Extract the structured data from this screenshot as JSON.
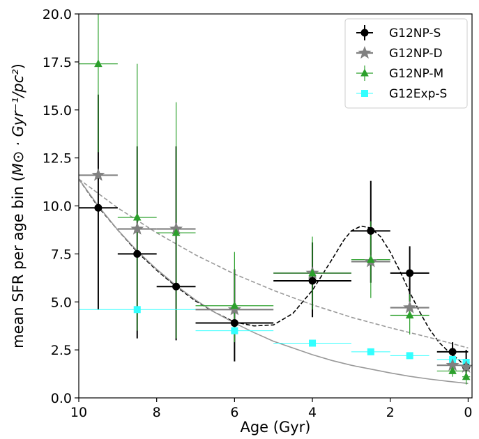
{
  "chart_data": {
    "type": "scatter",
    "xlabel": "Age (Gyr)",
    "ylabel_prefix": "mean SFR per age bin (",
    "ylabel_math": "M⊙ · Gyr⁻¹/pc²",
    "ylabel_suffix": ")",
    "xlim": [
      10,
      -0.1
    ],
    "ylim": [
      0,
      20
    ],
    "x_ticks": [
      10,
      8,
      6,
      4,
      2,
      0
    ],
    "x_tick_labels": [
      "10",
      "8",
      "6",
      "4",
      "2",
      "0"
    ],
    "y_ticks": [
      0,
      2.5,
      5,
      7.5,
      10,
      12.5,
      15,
      17.5,
      20
    ],
    "y_tick_labels": [
      "0.0",
      "2.5",
      "5.0",
      "7.5",
      "10.0",
      "12.5",
      "15.0",
      "17.5",
      "20.0"
    ],
    "grid": false,
    "legend_position": "top-right",
    "series": [
      {
        "name": "G12NP-S",
        "marker": "circle",
        "color": "#000000",
        "points": [
          {
            "x": 9.5,
            "y": 9.9,
            "xlo": 9.0,
            "xhi": 10.0,
            "ylo": 4.6,
            "yhi": 15.8
          },
          {
            "x": 8.5,
            "y": 7.5,
            "xlo": 8.0,
            "xhi": 9.0,
            "ylo": 3.1,
            "yhi": 13.1
          },
          {
            "x": 7.5,
            "y": 5.8,
            "xlo": 7.0,
            "xhi": 8.0,
            "ylo": 3.0,
            "yhi": 13.1
          },
          {
            "x": 6.0,
            "y": 3.9,
            "xlo": 5.0,
            "xhi": 7.0,
            "ylo": 1.9,
            "yhi": 6.7
          },
          {
            "x": 4.0,
            "y": 6.1,
            "xlo": 3.0,
            "xhi": 5.0,
            "ylo": 4.2,
            "yhi": 8.1
          },
          {
            "x": 2.5,
            "y": 8.7,
            "xlo": 2.0,
            "xhi": 3.0,
            "ylo": 6.0,
            "yhi": 11.3
          },
          {
            "x": 1.5,
            "y": 6.5,
            "xlo": 1.0,
            "xhi": 2.0,
            "ylo": 5.0,
            "yhi": 7.9
          },
          {
            "x": 0.4,
            "y": 2.4,
            "xlo": 0.0,
            "xhi": 0.8,
            "ylo": 1.9,
            "yhi": 2.9
          },
          {
            "x": 0.05,
            "y": 1.6,
            "xlo": -0.05,
            "xhi": 0.15,
            "ylo": 1.0,
            "yhi": 2.5
          }
        ]
      },
      {
        "name": "G12NP-D",
        "marker": "star",
        "color": "#808080",
        "points": [
          {
            "x": 9.5,
            "y": 11.6,
            "xlo": 9.0,
            "xhi": 10.0
          },
          {
            "x": 8.5,
            "y": 8.8,
            "xlo": 8.0,
            "xhi": 9.0
          },
          {
            "x": 7.5,
            "y": 8.8,
            "xlo": 7.0,
            "xhi": 8.0
          },
          {
            "x": 6.0,
            "y": 4.6,
            "xlo": 5.0,
            "xhi": 7.0
          },
          {
            "x": 4.0,
            "y": 6.5,
            "xlo": 3.0,
            "xhi": 5.0
          },
          {
            "x": 2.5,
            "y": 7.1,
            "xlo": 2.0,
            "xhi": 3.0
          },
          {
            "x": 1.5,
            "y": 4.7,
            "xlo": 1.0,
            "xhi": 2.0
          },
          {
            "x": 0.4,
            "y": 1.7,
            "xlo": 0.0,
            "xhi": 0.8
          },
          {
            "x": 0.05,
            "y": 1.6,
            "xlo": -0.05,
            "xhi": 0.15
          }
        ]
      },
      {
        "name": "G12NP-M",
        "marker": "triangle",
        "color": "#2ca02c",
        "points": [
          {
            "x": 9.5,
            "y": 17.4,
            "xlo": 9.0,
            "xhi": 10.0,
            "ylo": 12.8,
            "yhi": 20.0
          },
          {
            "x": 8.5,
            "y": 9.4,
            "xlo": 8.0,
            "xhi": 9.0,
            "ylo": 3.5,
            "yhi": 17.4
          },
          {
            "x": 7.5,
            "y": 8.6,
            "xlo": 7.0,
            "xhi": 8.0,
            "ylo": 3.1,
            "yhi": 15.4
          },
          {
            "x": 6.0,
            "y": 4.8,
            "xlo": 5.0,
            "xhi": 7.0,
            "ylo": 2.9,
            "yhi": 7.6
          },
          {
            "x": 4.0,
            "y": 6.5,
            "xlo": 3.0,
            "xhi": 5.0,
            "ylo": 4.6,
            "yhi": 8.4
          },
          {
            "x": 2.5,
            "y": 7.2,
            "xlo": 2.0,
            "xhi": 3.0,
            "ylo": 5.2,
            "yhi": 9.2
          },
          {
            "x": 1.5,
            "y": 4.3,
            "xlo": 1.0,
            "xhi": 2.0,
            "ylo": 3.3,
            "yhi": 5.4
          },
          {
            "x": 0.4,
            "y": 1.4,
            "xlo": 0.0,
            "xhi": 0.8,
            "ylo": 1.1,
            "yhi": 1.9
          },
          {
            "x": 0.05,
            "y": 1.1,
            "xlo": -0.05,
            "xhi": 0.15,
            "ylo": 0.7,
            "yhi": 1.5
          }
        ]
      },
      {
        "name": "G12Exp-S",
        "marker": "square",
        "color": "#33ffff",
        "points": [
          {
            "x": 8.5,
            "y": 4.6,
            "xlo": 7.0,
            "xhi": 10.0
          },
          {
            "x": 6.0,
            "y": 3.5,
            "xlo": 5.0,
            "xhi": 7.0
          },
          {
            "x": 4.0,
            "y": 2.85,
            "xlo": 3.0,
            "xhi": 5.0
          },
          {
            "x": 2.5,
            "y": 2.4,
            "xlo": 2.0,
            "xhi": 3.0
          },
          {
            "x": 1.5,
            "y": 2.2,
            "xlo": 1.0,
            "xhi": 2.0
          },
          {
            "x": 0.4,
            "y": 2.0,
            "xlo": 0.0,
            "xhi": 0.8
          },
          {
            "x": 0.05,
            "y": 1.85,
            "xlo": -0.05,
            "xhi": 0.15
          }
        ]
      }
    ],
    "curves": [
      {
        "style": "dashed",
        "color": "#000000",
        "points": [
          [
            10,
            11.4
          ],
          [
            9.5,
            9.95
          ],
          [
            9,
            8.75
          ],
          [
            8.5,
            7.6
          ],
          [
            8,
            6.65
          ],
          [
            7.5,
            5.8
          ],
          [
            7,
            5.05
          ],
          [
            6.5,
            4.45
          ],
          [
            6,
            3.95
          ],
          [
            5.5,
            3.75
          ],
          [
            5,
            3.8
          ],
          [
            4.5,
            4.4
          ],
          [
            4,
            5.6
          ],
          [
            3.5,
            7.2
          ],
          [
            3.2,
            8.2
          ],
          [
            3,
            8.7
          ],
          [
            2.75,
            8.95
          ],
          [
            2.5,
            8.85
          ],
          [
            2.25,
            8.4
          ],
          [
            2,
            7.6
          ],
          [
            1.75,
            6.6
          ],
          [
            1.5,
            5.5
          ],
          [
            1.25,
            4.5
          ],
          [
            1,
            3.6
          ],
          [
            0.75,
            2.9
          ],
          [
            0.5,
            2.4
          ],
          [
            0.25,
            2.0
          ],
          [
            0,
            1.5
          ]
        ]
      },
      {
        "style": "solid",
        "color": "#999999",
        "points": [
          [
            10,
            11.4
          ],
          [
            9.5,
            10.0
          ],
          [
            9,
            8.75
          ],
          [
            8.5,
            7.65
          ],
          [
            8,
            6.7
          ],
          [
            7.5,
            5.85
          ],
          [
            7,
            5.1
          ],
          [
            6.5,
            4.45
          ],
          [
            6,
            3.9
          ],
          [
            5.5,
            3.4
          ],
          [
            5,
            2.95
          ],
          [
            4.5,
            2.6
          ],
          [
            4,
            2.25
          ],
          [
            3.5,
            1.95
          ],
          [
            3,
            1.7
          ],
          [
            2.5,
            1.5
          ],
          [
            2,
            1.3
          ],
          [
            1.5,
            1.12
          ],
          [
            1,
            0.98
          ],
          [
            0.5,
            0.86
          ],
          [
            0,
            0.75
          ]
        ]
      },
      {
        "style": "dashed",
        "color": "#999999",
        "points": [
          [
            10,
            11.4
          ],
          [
            9,
            9.9
          ],
          [
            8,
            8.6
          ],
          [
            7,
            7.45
          ],
          [
            6,
            6.45
          ],
          [
            5,
            5.6
          ],
          [
            4,
            4.85
          ],
          [
            3,
            4.2
          ],
          [
            2,
            3.65
          ],
          [
            1,
            3.15
          ],
          [
            0,
            2.6
          ]
        ]
      }
    ]
  }
}
